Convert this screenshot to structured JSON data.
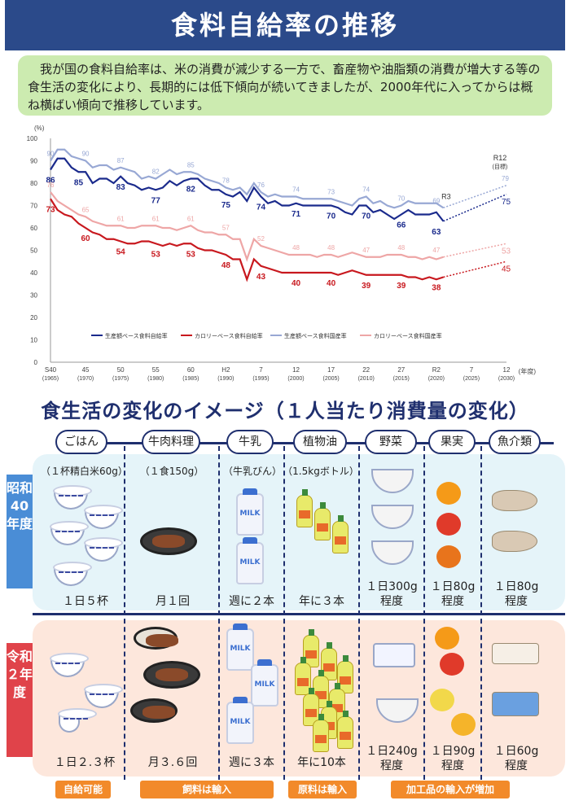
{
  "title": "食料自給率の推移",
  "intro": "　我が国の食料自給率は、米の消費が減少する一方で、畜産物や油脂類の消費が増大する等の食生活の変化により、長期的には低下傾向が続いてきましたが、2000年代に入ってからは概ね横ばい傾向で推移しています。",
  "chart_data": {
    "type": "line",
    "ylabel": "(%)",
    "xlabel": "(年度)",
    "ylim": [
      0,
      100
    ],
    "yticks": [
      0,
      10,
      20,
      30,
      40,
      50,
      60,
      70,
      80,
      90,
      100
    ],
    "xticks": [
      {
        "year": 1965,
        "top": "S40",
        "bottom": "(1965)"
      },
      {
        "year": 1970,
        "top": "45",
        "bottom": "(1970)"
      },
      {
        "year": 1975,
        "top": "50",
        "bottom": "(1975)"
      },
      {
        "year": 1980,
        "top": "55",
        "bottom": "(1980)"
      },
      {
        "year": 1985,
        "top": "60",
        "bottom": "(1985)"
      },
      {
        "year": 1990,
        "top": "H2",
        "bottom": "(1990)"
      },
      {
        "year": 1995,
        "top": "7",
        "bottom": "(1995)"
      },
      {
        "year": 2000,
        "top": "12",
        "bottom": "(2000)"
      },
      {
        "year": 2005,
        "top": "17",
        "bottom": "(2005)"
      },
      {
        "year": 2010,
        "top": "22",
        "bottom": "(2010)"
      },
      {
        "year": 2015,
        "top": "27",
        "bottom": "(2015)"
      },
      {
        "year": 2020,
        "top": "R2",
        "bottom": "(2020)"
      },
      {
        "year": 2025,
        "top": "7",
        "bottom": "(2025)"
      },
      {
        "year": 2030,
        "top": "12",
        "bottom": "(2030)"
      }
    ],
    "annotations": {
      "r3": "R3",
      "r12": "R12",
      "r12_sub": "(目標)"
    },
    "series": [
      {
        "name": "生産額ベース食料自給率",
        "color": "#1a2a8c",
        "x": [
          1965,
          1966,
          1967,
          1968,
          1969,
          1970,
          1971,
          1972,
          1973,
          1974,
          1975,
          1976,
          1977,
          1978,
          1979,
          1980,
          1981,
          1982,
          1983,
          1984,
          1985,
          1986,
          1987,
          1988,
          1989,
          1990,
          1991,
          1992,
          1993,
          1994,
          1995,
          1996,
          1997,
          1998,
          1999,
          2000,
          2001,
          2002,
          2003,
          2004,
          2005,
          2006,
          2007,
          2008,
          2009,
          2010,
          2011,
          2012,
          2013,
          2014,
          2015,
          2016,
          2017,
          2018,
          2019,
          2020,
          2021
        ],
        "y": [
          86,
          91,
          91,
          87,
          85,
          85,
          80,
          82,
          82,
          80,
          83,
          80,
          79,
          77,
          78,
          77,
          78,
          81,
          79,
          81,
          82,
          82,
          79,
          77,
          77,
          75,
          74,
          76,
          72,
          78,
          74,
          71,
          72,
          70,
          70,
          71,
          70,
          70,
          70,
          70,
          70,
          69,
          67,
          66,
          70,
          70,
          67,
          68,
          66,
          64,
          66,
          68,
          66,
          66,
          66,
          67,
          63
        ],
        "labels": [
          {
            "x": 1965,
            "y": 86,
            "t": "86"
          },
          {
            "x": 1969,
            "y": 85,
            "t": "85"
          },
          {
            "x": 1975,
            "y": 83,
            "t": "83"
          },
          {
            "x": 1980,
            "y": 77,
            "t": "77"
          },
          {
            "x": 1985,
            "y": 82,
            "t": "82"
          },
          {
            "x": 1990,
            "y": 75,
            "t": "75"
          },
          {
            "x": 1995,
            "y": 74,
            "t": "74"
          },
          {
            "x": 2000,
            "y": 71,
            "t": "71"
          },
          {
            "x": 2005,
            "y": 70,
            "t": "70"
          },
          {
            "x": 2010,
            "y": 70,
            "t": "70"
          },
          {
            "x": 2015,
            "y": 66,
            "t": "66"
          },
          {
            "x": 2020,
            "y": 63,
            "t": "63"
          }
        ],
        "target": {
          "x": 2030,
          "y": 75,
          "t": "75"
        }
      },
      {
        "name": "カロリーベース食料自給率",
        "color": "#c8181e",
        "x": [
          1965,
          1966,
          1967,
          1968,
          1969,
          1970,
          1971,
          1972,
          1973,
          1974,
          1975,
          1976,
          1977,
          1978,
          1979,
          1980,
          1981,
          1982,
          1983,
          1984,
          1985,
          1986,
          1987,
          1988,
          1989,
          1990,
          1991,
          1992,
          1993,
          1994,
          1995,
          1996,
          1997,
          1998,
          1999,
          2000,
          2001,
          2002,
          2003,
          2004,
          2005,
          2006,
          2007,
          2008,
          2009,
          2010,
          2011,
          2012,
          2013,
          2014,
          2015,
          2016,
          2017,
          2018,
          2019,
          2020,
          2021
        ],
        "y": [
          73,
          68,
          66,
          65,
          62,
          60,
          58,
          57,
          55,
          55,
          54,
          53,
          53,
          54,
          54,
          53,
          52,
          53,
          52,
          53,
          53,
          51,
          50,
          50,
          49,
          48,
          46,
          46,
          37,
          46,
          43,
          42,
          41,
          40,
          40,
          40,
          40,
          40,
          40,
          40,
          40,
          39,
          40,
          41,
          40,
          39,
          39,
          39,
          39,
          39,
          39,
          38,
          38,
          37,
          38,
          37,
          38
        ],
        "labels": [
          {
            "x": 1965,
            "y": 73,
            "t": "73"
          },
          {
            "x": 1970,
            "y": 60,
            "t": "60"
          },
          {
            "x": 1975,
            "y": 54,
            "t": "54"
          },
          {
            "x": 1980,
            "y": 53,
            "t": "53"
          },
          {
            "x": 1985,
            "y": 53,
            "t": "53"
          },
          {
            "x": 1990,
            "y": 48,
            "t": "48"
          },
          {
            "x": 1995,
            "y": 43,
            "t": "43"
          },
          {
            "x": 2000,
            "y": 40,
            "t": "40"
          },
          {
            "x": 2005,
            "y": 40,
            "t": "40"
          },
          {
            "x": 2010,
            "y": 39,
            "t": "39"
          },
          {
            "x": 2015,
            "y": 39,
            "t": "39"
          },
          {
            "x": 2020,
            "y": 38,
            "t": "38"
          }
        ],
        "target": {
          "x": 2030,
          "y": 45,
          "t": "45"
        }
      },
      {
        "name": "生産額ベース食料国産率",
        "color": "#98a8d4",
        "x": [
          1965,
          1966,
          1967,
          1968,
          1969,
          1970,
          1971,
          1972,
          1973,
          1974,
          1975,
          1976,
          1977,
          1978,
          1979,
          1980,
          1981,
          1982,
          1983,
          1984,
          1985,
          1986,
          1987,
          1988,
          1989,
          1990,
          1991,
          1992,
          1993,
          1994,
          1995,
          1996,
          1997,
          1998,
          1999,
          2000,
          2001,
          2002,
          2003,
          2004,
          2005,
          2006,
          2007,
          2008,
          2009,
          2010,
          2011,
          2012,
          2013,
          2014,
          2015,
          2016,
          2017,
          2018,
          2019,
          2020,
          2021
        ],
        "y": [
          90,
          95,
          95,
          92,
          91,
          90,
          87,
          88,
          88,
          86,
          87,
          86,
          85,
          82,
          83,
          82,
          84,
          86,
          84,
          85,
          85,
          84,
          82,
          81,
          80,
          78,
          77,
          78,
          75,
          80,
          76,
          74,
          75,
          74,
          74,
          74,
          73,
          73,
          73,
          73,
          73,
          72,
          71,
          70,
          73,
          74,
          71,
          72,
          70,
          69,
          70,
          72,
          71,
          71,
          71,
          71,
          69
        ],
        "labels": [
          {
            "x": 1965,
            "y": 90,
            "t": "90"
          },
          {
            "x": 1970,
            "y": 90,
            "t": "90"
          },
          {
            "x": 1975,
            "y": 87,
            "t": "87"
          },
          {
            "x": 1980,
            "y": 82,
            "t": "82"
          },
          {
            "x": 1985,
            "y": 85,
            "t": "85"
          },
          {
            "x": 1990,
            "y": 78,
            "t": "78"
          },
          {
            "x": 1995,
            "y": 76,
            "t": "76"
          },
          {
            "x": 2000,
            "y": 74,
            "t": "74"
          },
          {
            "x": 2005,
            "y": 73,
            "t": "73"
          },
          {
            "x": 2010,
            "y": 74,
            "t": "74"
          },
          {
            "x": 2015,
            "y": 70,
            "t": "70"
          },
          {
            "x": 2020,
            "y": 69,
            "t": "69"
          }
        ],
        "target": {
          "x": 2030,
          "y": 79,
          "t": "79"
        }
      },
      {
        "name": "カロリーベース食料国産率",
        "color": "#eea6a6",
        "x": [
          1965,
          1966,
          1967,
          1968,
          1969,
          1970,
          1971,
          1972,
          1973,
          1974,
          1975,
          1976,
          1977,
          1978,
          1979,
          1980,
          1981,
          1982,
          1983,
          1984,
          1985,
          1986,
          1987,
          1988,
          1989,
          1990,
          1991,
          1992,
          1993,
          1994,
          1995,
          1996,
          1997,
          1998,
          1999,
          2000,
          2001,
          2002,
          2003,
          2004,
          2005,
          2006,
          2007,
          2008,
          2009,
          2010,
          2011,
          2012,
          2013,
          2014,
          2015,
          2016,
          2017,
          2018,
          2019,
          2020,
          2021
        ],
        "y": [
          76,
          72,
          70,
          68,
          66,
          65,
          63,
          62,
          61,
          61,
          61,
          60,
          60,
          61,
          61,
          61,
          60,
          60,
          59,
          60,
          61,
          59,
          58,
          58,
          57,
          57,
          55,
          55,
          46,
          55,
          52,
          51,
          50,
          49,
          48,
          48,
          48,
          48,
          47,
          48,
          48,
          47,
          48,
          49,
          48,
          47,
          47,
          47,
          48,
          48,
          48,
          47,
          47,
          46,
          47,
          46,
          47
        ],
        "labels": [
          {
            "x": 1965,
            "y": 76,
            "t": "76"
          },
          {
            "x": 1970,
            "y": 65,
            "t": "65"
          },
          {
            "x": 1975,
            "y": 61,
            "t": "61"
          },
          {
            "x": 1980,
            "y": 61,
            "t": "61"
          },
          {
            "x": 1985,
            "y": 61,
            "t": "61"
          },
          {
            "x": 1990,
            "y": 57,
            "t": "57"
          },
          {
            "x": 1995,
            "y": 52,
            "t": "52"
          },
          {
            "x": 2000,
            "y": 48,
            "t": "48"
          },
          {
            "x": 2005,
            "y": 48,
            "t": "48"
          },
          {
            "x": 2010,
            "y": 47,
            "t": "47"
          },
          {
            "x": 2015,
            "y": 48,
            "t": "48"
          },
          {
            "x": 2020,
            "y": 47,
            "t": "47"
          }
        ],
        "target": {
          "x": 2030,
          "y": 53,
          "t": "53"
        }
      }
    ]
  },
  "section2": {
    "title": "食生活の変化のイメージ（１人当たり消費量の変化）",
    "categories": [
      "ごはん",
      "牛肉料理",
      "牛乳",
      "植物油",
      "野菜",
      "果実",
      "魚介類"
    ],
    "units": [
      "（１杯精白米60g）",
      "（１食150g）",
      "（牛乳びん）",
      "（1.5kgボトル）"
    ],
    "milk_label": "MILK",
    "era_a": {
      "label": "昭和40年度",
      "amounts": [
        "１日５杯",
        "月１回",
        "週に２本",
        "年に３本",
        "１日300g\n程度",
        "１日80g\n程度",
        "１日80g\n程度"
      ]
    },
    "era_b": {
      "label": "令和２年度",
      "amounts": [
        "１日２.３杯",
        "月３.６回",
        "週に３本",
        "年に10本",
        "１日240g\n程度",
        "１日90g\n程度",
        "１日60g\n程度"
      ]
    },
    "tags": [
      "自給可能",
      "飼料は輸入",
      "原料は輸入",
      "加工品の輸入が増加"
    ]
  }
}
